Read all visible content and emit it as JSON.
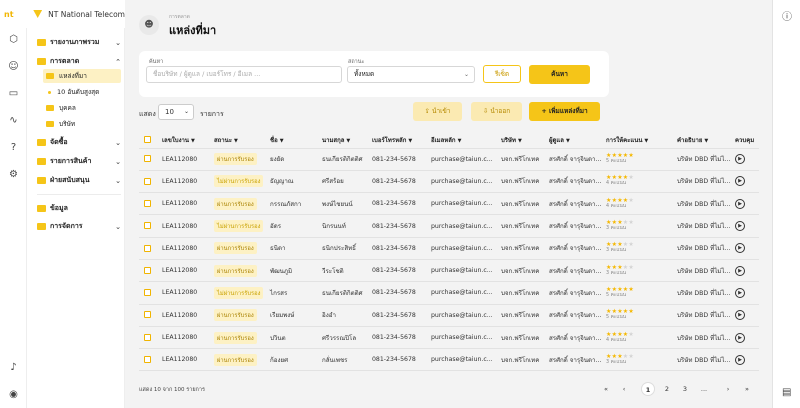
{
  "brand": {
    "logo_text": "nt",
    "name": "NT National Telecom"
  },
  "rail_icons": [
    "cube-icon",
    "user-icon",
    "folder-icon",
    "chart-icon",
    "help-icon",
    "gear-icon",
    "bell-icon",
    "account-icon"
  ],
  "sidebar": {
    "sections": [
      {
        "label": "รายงานภาพรวม",
        "chev": "⌄"
      },
      {
        "label": "การตลาด",
        "chev": "⌃"
      },
      {
        "label": "จัดซื้อ",
        "chev": "⌄"
      },
      {
        "label": "รายการสินค้า",
        "chev": "⌄"
      },
      {
        "label": "ฝ่ายสนับสนุน",
        "chev": "⌄"
      },
      {
        "label": "ข้อมูล",
        "chev": ""
      },
      {
        "label": "การจัดการ",
        "chev": "⌄"
      }
    ],
    "sub": [
      {
        "label": "แหล่งที่มา"
      },
      {
        "label": "10 อันดับสูงสุด"
      },
      {
        "label": "บุคคล"
      },
      {
        "label": "บริษัท"
      }
    ]
  },
  "header": {
    "crumb": "การตลาด",
    "title": "แหล่งที่มา"
  },
  "filter": {
    "search_label": "ค้นหา",
    "search_placeholder": "ชื่อบริษัท / ผู้ดูแล / เบอร์โทร / อีเมล ...",
    "status_label": "สถานะ",
    "status_value": "ทั้งหมด",
    "reset_label": "รีเซ็ต",
    "search_button": "ค้นหา"
  },
  "toolbar": {
    "show_label": "แสดง",
    "per_page": "10",
    "items_label": "รายการ",
    "import_label": "นำเข้า",
    "export_label": "นำออก",
    "add_label": "เพิ่มแหล่งที่มา"
  },
  "table": {
    "headers": [
      "เลขใบงาน",
      "สถานะ",
      "ชื่อ",
      "นามสกุล",
      "เบอร์โทรหลัก",
      "อีเมลหลัก",
      "บริษัท",
      "ผู้ดูแล",
      "การให้คะแนน",
      "คำอธิบาย",
      "ควบคุม"
    ],
    "rows": [
      {
        "id": "LEA112080",
        "status": "ผ่านการรับรอง",
        "pass": true,
        "first": "ยงยัด",
        "last": "ธนเกียรติกิตติศ",
        "phone": "081-234-5678",
        "email": "purchase@taiun.c...",
        "company": "บจก.ฟรีโกเทค",
        "owner": "สรศักดิ์ จารุจินดามา",
        "stars": 5,
        "count": "5 คะแนน",
        "desc": "บริษัท DBD ที่ไม่ได้เป็น..."
      },
      {
        "id": "LEA112080",
        "status": "ไม่ผ่านการรับรอง",
        "pass": false,
        "first": "ธัญญาณ",
        "last": "ศรีสร้อย",
        "phone": "081-234-5678",
        "email": "purchase@taiun.c...",
        "company": "บจก.ฟรีโกเทค",
        "owner": "สรศักดิ์ จารุจินดามา",
        "stars": 4,
        "count": "4 คะแนน",
        "desc": "บริษัท DBD ที่ไม่ได้เป็น..."
      },
      {
        "id": "LEA112080",
        "status": "ผ่านการรับรอง",
        "pass": true,
        "first": "กรรณภัสกา",
        "last": "พงษ์ไชยนน์",
        "phone": "081-234-5678",
        "email": "purchase@taiun.c...",
        "company": "บจก.ฟรีโกเทค",
        "owner": "สรศักดิ์ จารุจินดามา",
        "stars": 4,
        "count": "4 คะแนน",
        "desc": "บริษัท DBD ที่ไม่ได้เป็น..."
      },
      {
        "id": "LEA112080",
        "status": "ไม่ผ่านการรับรอง",
        "pass": false,
        "first": "อัดร",
        "last": "นิกรนนท์",
        "phone": "081-234-5678",
        "email": "purchase@taiun.c...",
        "company": "บจก.ฟรีโกเทค",
        "owner": "สรศักดิ์ จารุจินดามา",
        "stars": 3,
        "count": "3 คะแนน",
        "desc": "บริษัท DBD ที่ไม่ได้เป็น..."
      },
      {
        "id": "LEA112080",
        "status": "ผ่านการรับรอง",
        "pass": true,
        "first": "ธนิดา",
        "last": "ธนิกประสิทธิ์",
        "phone": "081-234-5678",
        "email": "purchase@taiun.c...",
        "company": "บจก.ฟรีโกเทค",
        "owner": "สรศักดิ์ จารุจินดามา",
        "stars": 3,
        "count": "3 คะแนน",
        "desc": "บริษัท DBD ที่ไม่ได้เป็น..."
      },
      {
        "id": "LEA112080",
        "status": "ผ่านการรับรอง",
        "pass": true,
        "first": "พัฒนภูมิ",
        "last": "วีระโชติ",
        "phone": "081-234-5678",
        "email": "purchase@taiun.c...",
        "company": "บจก.ฟรีโกเทค",
        "owner": "สรศักดิ์ จารุจินดามา",
        "stars": 3,
        "count": "3 คะแนน",
        "desc": "บริษัท DBD ที่ไม่ได้เป็น..."
      },
      {
        "id": "LEA112080",
        "status": "ไม่ผ่านการรับรอง",
        "pass": false,
        "first": "ไกรสร",
        "last": "ธนเกียรติกิตติศ",
        "phone": "081-234-5678",
        "email": "purchase@taiun.c...",
        "company": "บจก.ฟรีโกเทค",
        "owner": "สรศักดิ์ จารุจินดามา",
        "stars": 5,
        "count": "5 คะแนน",
        "desc": "บริษัท DBD ที่ไม่ได้เป็น..."
      },
      {
        "id": "LEA112080",
        "status": "ผ่านการรับรอง",
        "pass": true,
        "first": "เรียมพงษ์",
        "last": "อิงอำ",
        "phone": "081-234-5678",
        "email": "purchase@taiun.c...",
        "company": "บจก.ฟรีโกเทค",
        "owner": "สรศักดิ์ จารุจินดามา",
        "stars": 5,
        "count": "5 คะแนน",
        "desc": "บริษัท DBD ที่ไม่ได้เป็น..."
      },
      {
        "id": "LEA112080",
        "status": "ผ่านการรับรอง",
        "pass": true,
        "first": "ปวินต",
        "last": "ศรีวรรณปิโล",
        "phone": "081-234-5678",
        "email": "purchase@taiun.c...",
        "company": "บจก.ฟรีโกเทค",
        "owner": "สรศักดิ์ จารุจินดามา",
        "stars": 4,
        "count": "4 คะแนน",
        "desc": "บริษัท DBD ที่ไม่ได้เป็น..."
      },
      {
        "id": "LEA112080",
        "status": "ผ่านการรับรอง",
        "pass": true,
        "first": "ก้องยศ",
        "last": "กลั่นเพชร",
        "phone": "081-234-5678",
        "email": "purchase@taiun.c...",
        "company": "บจก.ฟรีโกเทค",
        "owner": "สรศักดิ์ จารุจินดามา",
        "stars": 3,
        "count": "3 คะแนน",
        "desc": "บริษัท DBD ที่ไม่ได้เป็น..."
      }
    ]
  },
  "footer": {
    "summary": "แสดง 10 จาก 100 รายการ"
  },
  "pagination": {
    "first": "«",
    "prev": "‹",
    "pages": [
      "1",
      "2",
      "3"
    ],
    "ellipsis": "...",
    "next": "›",
    "last": "»",
    "current": "1"
  },
  "colors": {
    "accent": "#f5c518",
    "accent_soft": "#fdf1c4"
  }
}
